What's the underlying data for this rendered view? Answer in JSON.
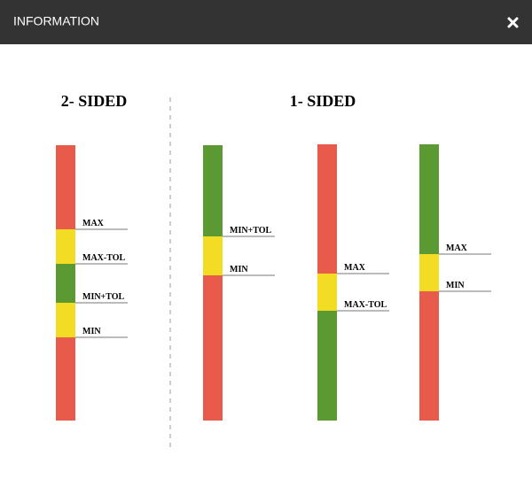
{
  "header": {
    "title": "INFORMATION"
  },
  "sections": [
    {
      "title": "2- SIDED"
    },
    {
      "title": "1- SIDED"
    }
  ],
  "bars": [
    {
      "labels": [
        "MAX",
        "MAX-TOL",
        "MIN+TOL",
        "MIN"
      ]
    },
    {
      "labels": [
        "MIN+TOL",
        "MIN"
      ]
    },
    {
      "labels": [
        "MAX",
        "MAX-TOL"
      ]
    },
    {
      "labels": [
        "MAX",
        "MIN"
      ]
    }
  ]
}
